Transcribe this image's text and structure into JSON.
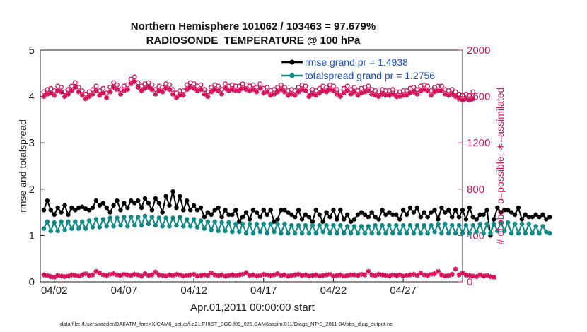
{
  "chart_data": {
    "type": "line",
    "title": "Northern Hemisphere 101062 / 103463 = 97.679%",
    "subtitle": "RADIOSONDE_TEMPERATURE @ 100 hPa",
    "xlabel": "Apr.01,2011 00:00:00 start",
    "ylabel": "rmse and totalspread",
    "y2label": "# of obs: o=possible; ∗=assimilated",
    "footnote": "data file: /Users/raeder/DAI/ATM_forcXX/CAM6_setup/f.e21.FHIST_BGC.f09_025.CAM6assim.011/Diags_NTrS_2011-04/obs_diag_output.nc",
    "x_ticks": [
      {
        "day": 2,
        "label": "04/02"
      },
      {
        "day": 7,
        "label": "04/07"
      },
      {
        "day": 12,
        "label": "04/12"
      },
      {
        "day": 17,
        "label": "04/17"
      },
      {
        "day": 22,
        "label": "04/22"
      },
      {
        "day": 27,
        "label": "04/27"
      }
    ],
    "xlim": [
      1.0,
      31.25
    ],
    "ylim": [
      0,
      5
    ],
    "y_ticks": [
      "0",
      "1",
      "2",
      "3",
      "4",
      "5"
    ],
    "y2lim": [
      0,
      2000
    ],
    "y2_ticks": [
      "0",
      "400",
      "800",
      "1200",
      "1600",
      "2000"
    ],
    "x_start": 1.25,
    "x_step": 0.25,
    "series": [
      {
        "name": "rmse grand pr = 1.4938",
        "axis": "left",
        "color": "#000000",
        "marker": "dot",
        "values": [
          1.55,
          1.75,
          1.55,
          1.45,
          1.6,
          1.5,
          1.65,
          1.45,
          1.6,
          1.55,
          1.6,
          1.62,
          1.58,
          1.55,
          1.6,
          1.75,
          1.65,
          1.7,
          1.6,
          1.5,
          1.65,
          1.75,
          1.55,
          1.7,
          1.6,
          1.75,
          1.7,
          1.75,
          1.6,
          1.8,
          1.7,
          1.55,
          1.8,
          1.7,
          1.5,
          1.85,
          1.65,
          1.95,
          1.6,
          1.85,
          1.55,
          1.75,
          1.55,
          1.65,
          1.55,
          1.6,
          1.4,
          1.5,
          1.45,
          1.55,
          1.6,
          1.4,
          1.55,
          1.45,
          1.45,
          1.55,
          1.3,
          1.4,
          1.5,
          1.35,
          1.55,
          1.5,
          1.4,
          1.55,
          1.45,
          1.55,
          1.3,
          1.35,
          1.55,
          1.55,
          1.5,
          1.45,
          1.4,
          1.55,
          1.35,
          1.45,
          1.4,
          1.3,
          1.55,
          1.45,
          1.3,
          1.5,
          1.4,
          1.55,
          1.35,
          1.55,
          1.35,
          1.45,
          1.3,
          1.35,
          1.45,
          1.5,
          1.45,
          1.4,
          1.5,
          1.4,
          1.35,
          1.55,
          1.45,
          1.5,
          1.45,
          1.45,
          1.35,
          1.55,
          1.45,
          1.6,
          1.5,
          1.6,
          1.4,
          1.5,
          1.4,
          1.5,
          1.55,
          1.35,
          1.6,
          1.5,
          1.55,
          1.4,
          1.55,
          1.4,
          1.55,
          1.35,
          1.6,
          1.4,
          1.35,
          1.45,
          1.45,
          1.55,
          1.0,
          1.35,
          1.6,
          1.5,
          1.55,
          1.55,
          1.5,
          1.45,
          1.6,
          1.35,
          1.45,
          1.4,
          1.4,
          1.45,
          1.4,
          1.45,
          1.35,
          1.4
        ]
      },
      {
        "name": "totalspread grand pr = 1.2756",
        "axis": "left",
        "color": "#0e8a88",
        "marker": "dot",
        "values": [
          1.15,
          1.3,
          1.1,
          1.28,
          1.1,
          1.3,
          1.12,
          1.3,
          1.15,
          1.3,
          1.15,
          1.3,
          1.15,
          1.32,
          1.18,
          1.35,
          1.18,
          1.35,
          1.2,
          1.38,
          1.2,
          1.38,
          1.22,
          1.4,
          1.2,
          1.4,
          1.22,
          1.4,
          1.22,
          1.42,
          1.25,
          1.4,
          1.22,
          1.38,
          1.2,
          1.38,
          1.2,
          1.38,
          1.22,
          1.4,
          1.2,
          1.35,
          1.2,
          1.35,
          1.18,
          1.32,
          1.15,
          1.3,
          1.12,
          1.3,
          1.1,
          1.28,
          1.1,
          1.28,
          1.08,
          1.25,
          1.08,
          1.25,
          1.05,
          1.25,
          1.05,
          1.25,
          1.08,
          1.25,
          1.05,
          1.25,
          1.08,
          1.25,
          1.05,
          1.25,
          1.05,
          1.22,
          1.05,
          1.22,
          1.05,
          1.22,
          1.05,
          1.22,
          1.05,
          1.22,
          1.08,
          1.22,
          1.05,
          1.22,
          1.05,
          1.22,
          1.05,
          1.2,
          1.05,
          1.2,
          1.05,
          1.2,
          1.05,
          1.2,
          1.05,
          1.22,
          1.05,
          1.22,
          1.05,
          1.22,
          1.05,
          1.22,
          1.05,
          1.22,
          1.05,
          1.22,
          1.05,
          1.22,
          1.05,
          1.22,
          1.05,
          1.22,
          1.08,
          1.25,
          1.05,
          1.25,
          1.05,
          1.22,
          1.05,
          1.22,
          1.05,
          1.22,
          1.05,
          1.22,
          1.08,
          1.25,
          1.05,
          1.25,
          1.05,
          1.25,
          1.1,
          1.28,
          1.1,
          1.28,
          1.05,
          1.25,
          1.05,
          1.25,
          1.05,
          1.25,
          1.05,
          1.2,
          1.05,
          1.2,
          1.08,
          1.05
        ]
      },
      {
        "name": "obs possible",
        "axis": "right",
        "color": "#d4145a",
        "marker": "circle",
        "values": [
          1640,
          1660,
          1670,
          1650,
          1690,
          1680,
          1640,
          1660,
          1690,
          1720,
          1680,
          1650,
          1620,
          1640,
          1660,
          1690,
          1650,
          1670,
          1630,
          1680,
          1720,
          1700,
          1660,
          1690,
          1700,
          1750,
          1770,
          1720,
          1690,
          1710,
          1720,
          1700,
          1660,
          1690,
          1680,
          1710,
          1700,
          1660,
          1630,
          1650,
          1650,
          1700,
          1720,
          1710,
          1690,
          1700,
          1660,
          1640,
          1680,
          1700,
          1690,
          1660,
          1710,
          1690,
          1700,
          1690,
          1690,
          1710,
          1700,
          1690,
          1700,
          1680,
          1710,
          1670,
          1680,
          1650,
          1660,
          1680,
          1700,
          1680,
          1650,
          1660,
          1650,
          1680,
          1700,
          1690,
          1640,
          1660,
          1650,
          1670,
          1690,
          1680,
          1700,
          1690,
          1660,
          1640,
          1670,
          1690,
          1660,
          1680,
          1650,
          1670,
          1680,
          1690,
          1660,
          1650,
          1640,
          1660,
          1650,
          1650,
          1660,
          1640,
          1640,
          1650,
          1650,
          1670,
          1680,
          1660,
          1690,
          1700,
          1690,
          1650,
          1680,
          1690,
          1690,
          1660,
          1650,
          1660,
          1640,
          1620,
          1610,
          1620,
          1610,
          1640
        ]
      },
      {
        "name": "obs assimilated",
        "axis": "right",
        "color": "#d4145a",
        "marker": "star",
        "values": [
          1600,
          1620,
          1630,
          1610,
          1650,
          1640,
          1600,
          1620,
          1650,
          1680,
          1640,
          1610,
          1580,
          1600,
          1620,
          1650,
          1610,
          1630,
          1590,
          1640,
          1680,
          1660,
          1620,
          1650,
          1660,
          1710,
          1730,
          1680,
          1650,
          1670,
          1680,
          1660,
          1620,
          1650,
          1640,
          1670,
          1660,
          1620,
          1590,
          1610,
          1610,
          1660,
          1680,
          1670,
          1650,
          1660,
          1620,
          1600,
          1640,
          1660,
          1650,
          1620,
          1670,
          1650,
          1660,
          1650,
          1650,
          1670,
          1660,
          1650,
          1660,
          1640,
          1670,
          1630,
          1640,
          1610,
          1620,
          1640,
          1660,
          1640,
          1610,
          1620,
          1610,
          1640,
          1660,
          1650,
          1600,
          1620,
          1610,
          1630,
          1650,
          1640,
          1660,
          1650,
          1620,
          1600,
          1630,
          1650,
          1620,
          1640,
          1610,
          1630,
          1640,
          1650,
          1620,
          1610,
          1600,
          1620,
          1610,
          1610,
          1620,
          1600,
          1600,
          1610,
          1610,
          1630,
          1640,
          1620,
          1650,
          1660,
          1650,
          1610,
          1640,
          1650,
          1650,
          1620,
          1610,
          1620,
          1600,
          1580,
          1570,
          1580,
          1570,
          1580
        ]
      },
      {
        "name": "obs count (lower)",
        "axis": "right",
        "color": "#d4145a",
        "marker": "star",
        "values": [
          60,
          55,
          45,
          40,
          55,
          50,
          45,
          50,
          60,
          55,
          50,
          60,
          70,
          55,
          60,
          90,
          75,
          60,
          55,
          65,
          70,
          60,
          55,
          65,
          60,
          55,
          65,
          60,
          50,
          70,
          55,
          60,
          85,
          60,
          55,
          50,
          60,
          55,
          65,
          60,
          50,
          55,
          60,
          65,
          50,
          55,
          60,
          55,
          75,
          60,
          55,
          60,
          50,
          55,
          60,
          55,
          60,
          65,
          80,
          55,
          60,
          50,
          55,
          65,
          60,
          55,
          60,
          70,
          55,
          60,
          50,
          55,
          60,
          65,
          55,
          60,
          50,
          55,
          60,
          50,
          55,
          60,
          65,
          50,
          55,
          60,
          50,
          55,
          60,
          60,
          55,
          65,
          60,
          90,
          60,
          55,
          65,
          60,
          55,
          50,
          60,
          55,
          60,
          50,
          55,
          60,
          65,
          55,
          75,
          60,
          55,
          65,
          70,
          90,
          60,
          50,
          55,
          65,
          110,
          60,
          75,
          60,
          55,
          50,
          45,
          60,
          50,
          55,
          45,
          40
        ]
      }
    ]
  }
}
